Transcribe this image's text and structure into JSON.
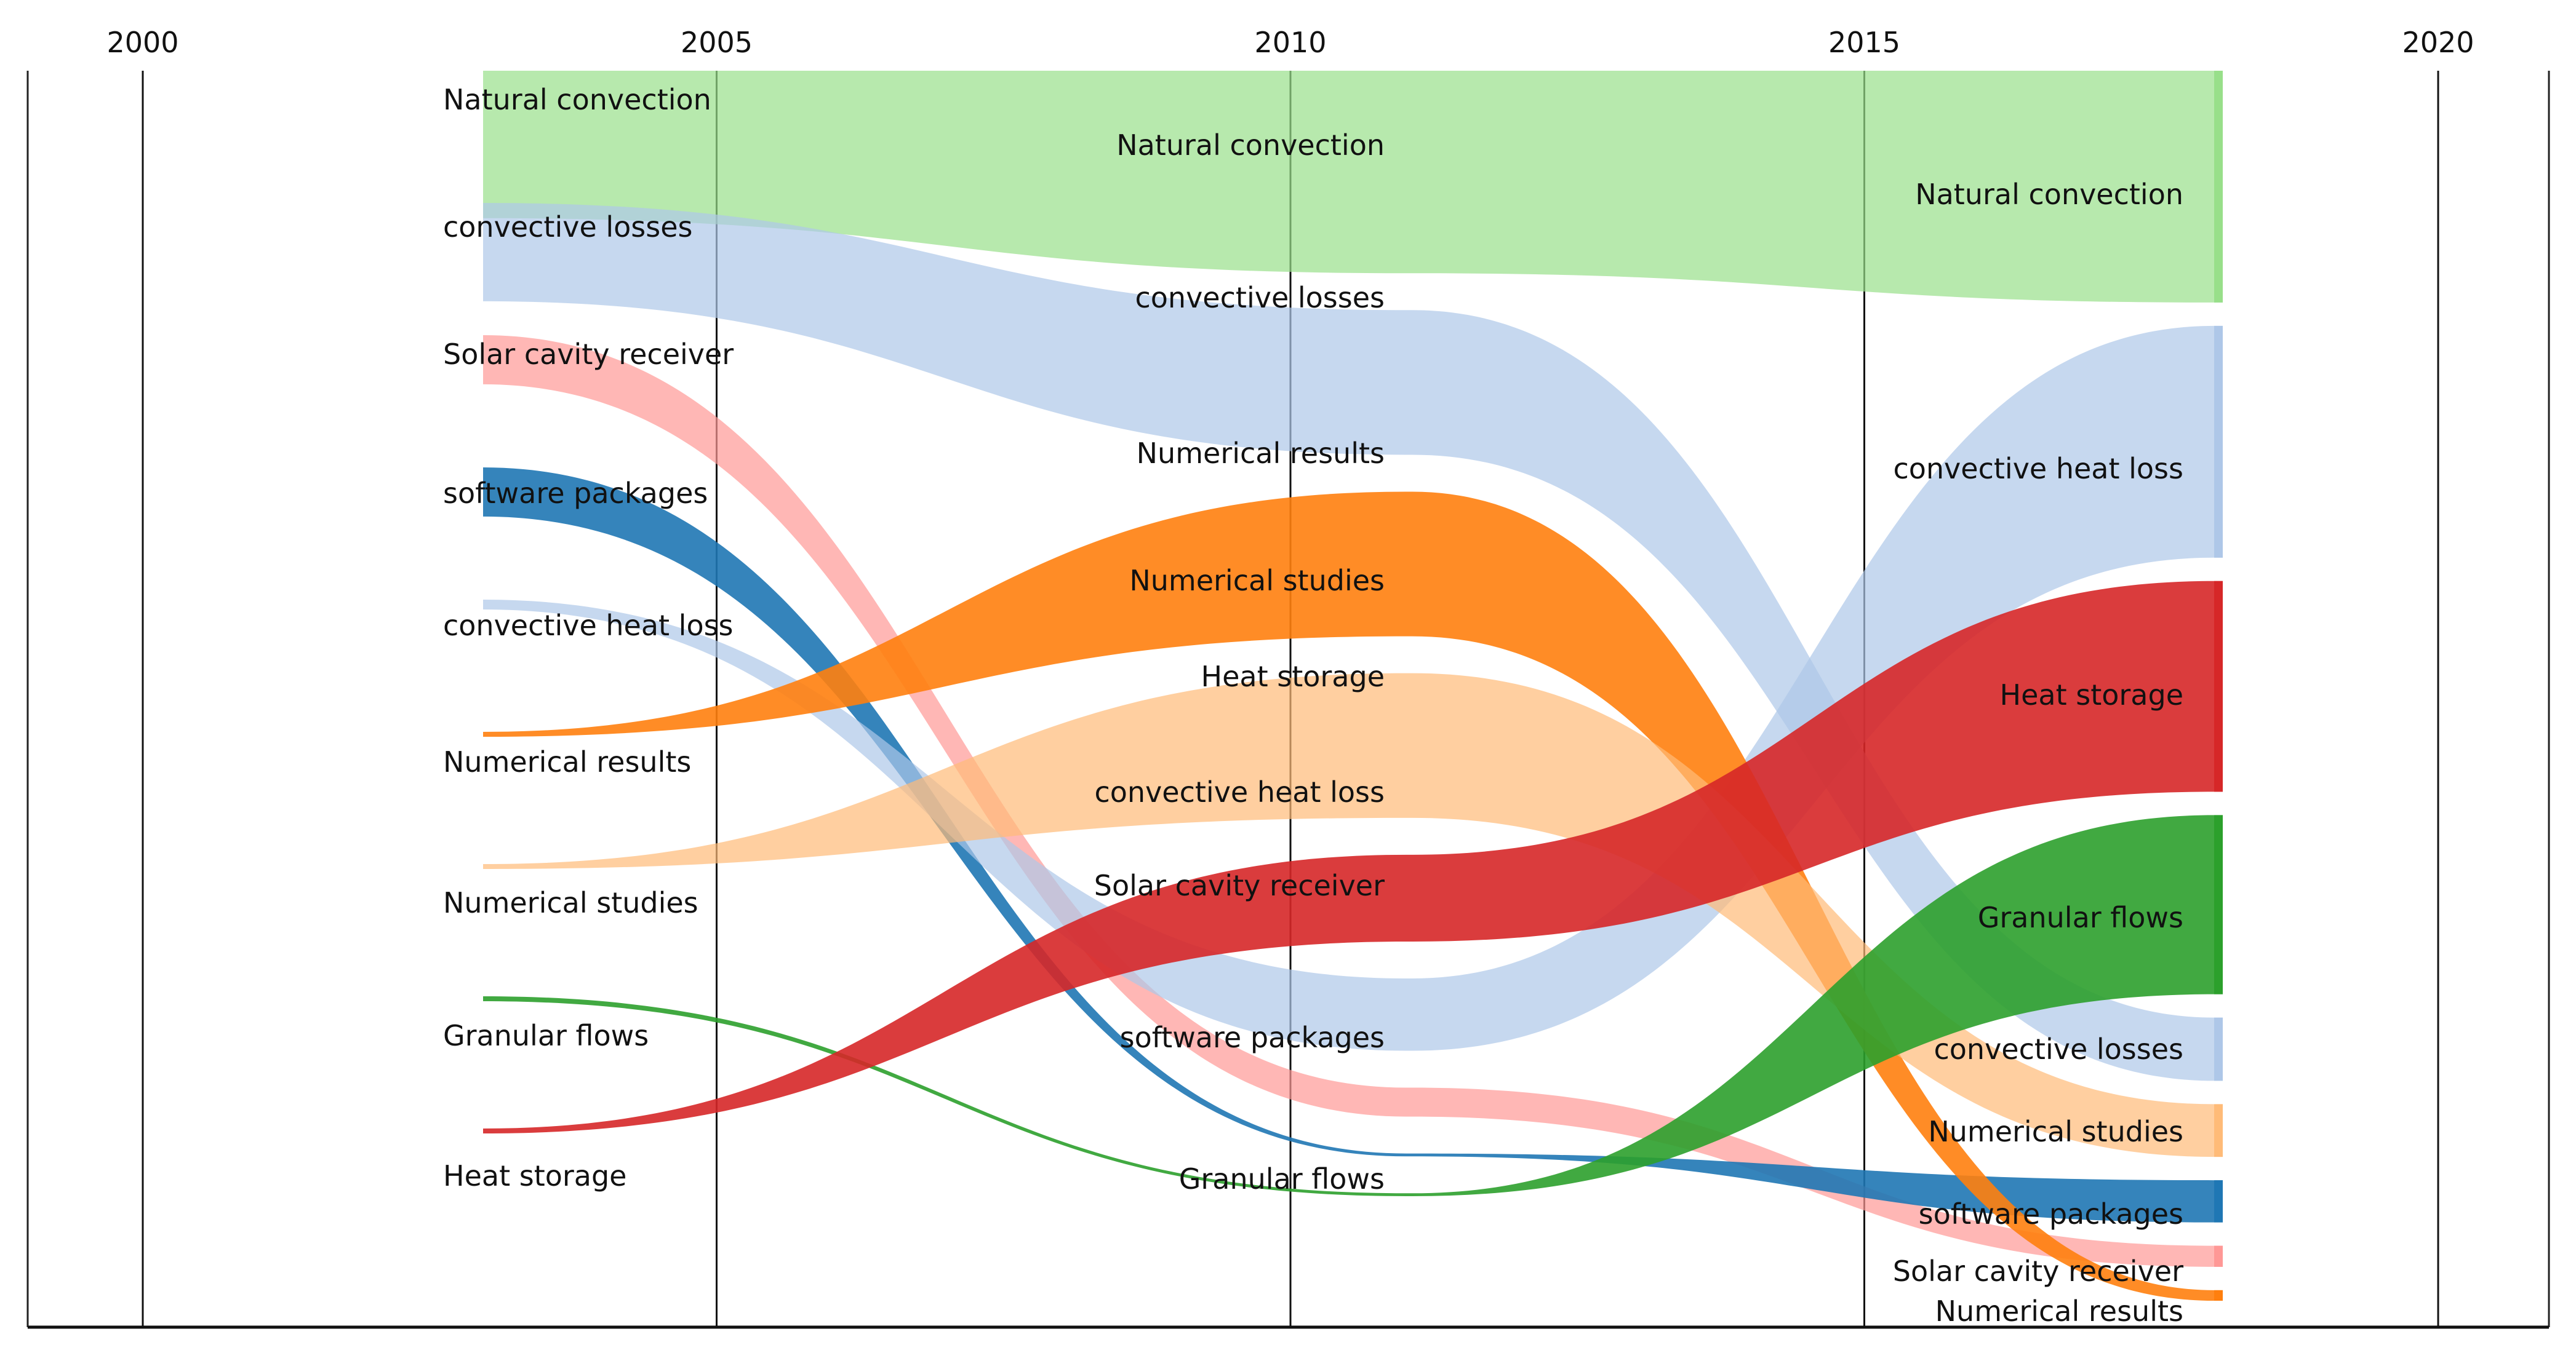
{
  "chart_data": {
    "type": "alluvial",
    "title": "",
    "xlabel": "",
    "ylabel": "",
    "xlim": [
      2000,
      2020
    ],
    "xticks": [
      2000,
      2005,
      2010,
      2015,
      2020
    ],
    "grid": "vertical",
    "periods": [
      2003,
      2010,
      2018
    ],
    "colors": {
      "natural_convection": "#98df8a",
      "convective_losses": "#aec7e8",
      "solar_cavity_receiver": "#ff9896",
      "software_packages": "#1f77b4",
      "convective_heat_loss": "#aec7e8",
      "numerical_results": "#ff7f0e",
      "numerical_studies": "#ffbb78",
      "granular_flows": "#2ca02c",
      "heat_storage": "#d62728"
    },
    "period_2003": {
      "natural_convection": "Natural convection",
      "convective_losses": "convective losses",
      "solar_cavity_receiver": "Solar cavity receiver",
      "software_packages": "software packages",
      "convective_heat_loss": "convective heat loss",
      "numerical_results": "Numerical results",
      "numerical_studies": "Numerical studies",
      "granular_flows": "Granular flows",
      "heat_storage": "Heat storage"
    },
    "period_2010": {
      "natural_convection": "Natural convection",
      "convective_losses": "convective losses",
      "numerical_results": "Numerical results",
      "numerical_studies": "Numerical studies",
      "heat_storage": "Heat storage",
      "convective_heat_loss": "convective heat loss",
      "solar_cavity_receiver": "Solar cavity receiver",
      "software_packages": "software packages",
      "granular_flows": "Granular flows"
    },
    "period_2018": {
      "natural_convection": "Natural convection",
      "convective_heat_loss": "convective heat loss",
      "heat_storage": "Heat storage",
      "granular_flows": "Granular flows",
      "convective_losses": "convective losses",
      "numerical_studies": "Numerical studies",
      "software_packages": "software packages",
      "solar_cavity_receiver": "Solar cavity receiver",
      "numerical_results": "Numerical results"
    },
    "streams": [
      {
        "key": "natural_convection",
        "name": "Natural convection",
        "width": [
          3,
          7,
          11
        ],
        "rank": [
          1,
          1,
          1
        ]
      },
      {
        "key": "convective_losses",
        "name": "convective losses",
        "width": [
          2,
          5,
          3
        ],
        "rank": [
          2,
          2,
          5
        ]
      },
      {
        "key": "solar_cavity_receiver",
        "name": "Solar cavity receiver",
        "width": [
          1,
          1,
          1
        ],
        "rank": [
          3,
          7,
          8
        ]
      },
      {
        "key": "software_packages",
        "name": "software packages",
        "width": [
          1,
          0.1,
          2
        ],
        "rank": [
          4,
          8,
          7
        ]
      },
      {
        "key": "convective_heat_loss",
        "name": "convective heat loss",
        "width": [
          0.2,
          2.5,
          11
        ],
        "rank": [
          5,
          6,
          2
        ]
      },
      {
        "key": "numerical_results",
        "name": "Numerical results",
        "width": [
          0.1,
          5,
          0.5
        ],
        "rank": [
          6,
          3,
          9
        ]
      },
      {
        "key": "numerical_studies",
        "name": "Numerical studies",
        "width": [
          0.1,
          5,
          2.5
        ],
        "rank": [
          7,
          4,
          6
        ]
      },
      {
        "key": "granular_flows",
        "name": "Granular flows",
        "width": [
          0,
          0.1,
          8.5
        ],
        "rank": [
          8,
          9,
          4
        ]
      },
      {
        "key": "heat_storage",
        "name": "Heat storage",
        "width": [
          0.1,
          3,
          10
        ],
        "rank": [
          9,
          5,
          3
        ]
      }
    ]
  }
}
